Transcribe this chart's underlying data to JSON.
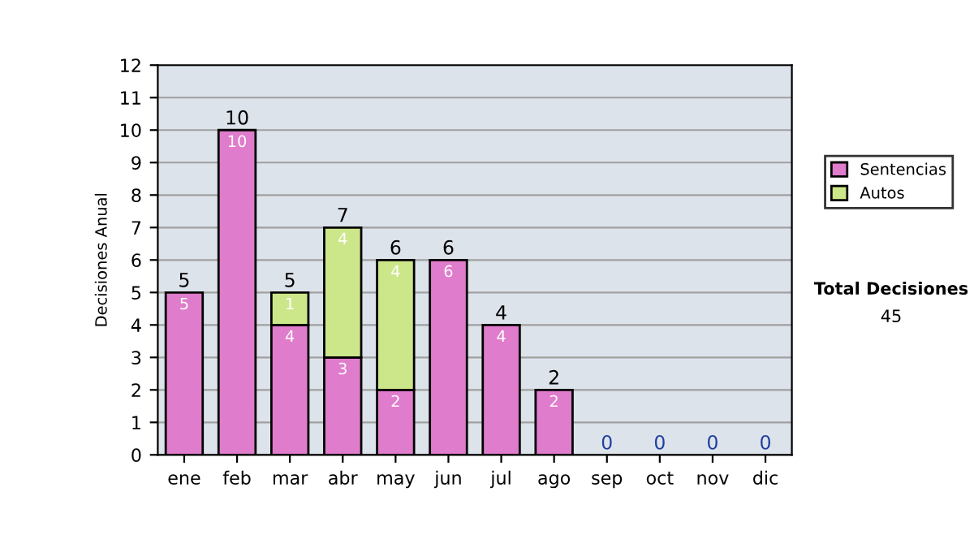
{
  "chart_data": {
    "type": "bar",
    "stacked": true,
    "ylabel": "Decisiones Anual",
    "categories": [
      "ene",
      "feb",
      "mar",
      "abr",
      "may",
      "jun",
      "jul",
      "ago",
      "sep",
      "oct",
      "nov",
      "dic"
    ],
    "series": [
      {
        "name": "Sentencias",
        "color": "#e07ccc",
        "values": [
          5,
          10,
          4,
          3,
          2,
          6,
          4,
          2,
          0,
          0,
          0,
          0
        ],
        "value_labels": [
          "5",
          "10",
          "4",
          "3",
          "2",
          "6",
          "4",
          "2",
          null,
          null,
          null,
          null
        ]
      },
      {
        "name": "Autos",
        "color": "#cce68a",
        "values": [
          0,
          0,
          1,
          4,
          4,
          0,
          0,
          0,
          0,
          0,
          0,
          0
        ],
        "value_labels": [
          null,
          null,
          "1",
          "4",
          "4",
          null,
          null,
          null,
          null,
          null,
          null,
          null
        ]
      }
    ],
    "totals": [
      "5",
      "10",
      "5",
      "7",
      "6",
      "6",
      "4",
      "2",
      "0",
      "0",
      "0",
      "0"
    ],
    "ylim": [
      0,
      12
    ],
    "yticks": [
      0,
      1,
      2,
      3,
      4,
      5,
      6,
      7,
      8,
      9,
      10,
      11,
      12
    ],
    "grid": "y",
    "legend": "right",
    "annotations": [
      "Total Decisiones",
      "45"
    ]
  }
}
